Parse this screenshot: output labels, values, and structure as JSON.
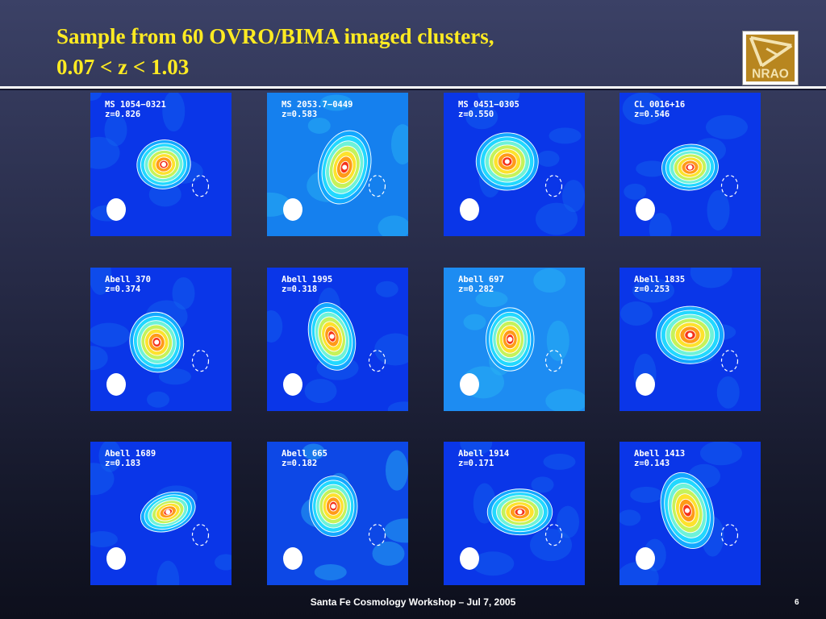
{
  "slide": {
    "title_line1": "Sample from 60 OVRO/BIMA imaged clusters,",
    "title_line2": "0.07 < z < 1.03",
    "logo_text": "NRAO",
    "footer": "Santa Fe Cosmology Workshop  – Jul 7, 2005",
    "page_number": "6",
    "title_color": "#ffeb22"
  },
  "panels": [
    {
      "name": "MS 1054−0321",
      "z": "z=0.826"
    },
    {
      "name": "MS 2053.7−0449",
      "z": "z=0.583"
    },
    {
      "name": "MS 0451−0305",
      "z": "z=0.550"
    },
    {
      "name": "CL 0016+16",
      "z": "z=0.546"
    },
    {
      "name": "Abell 370",
      "z": "z=0.374"
    },
    {
      "name": "Abell 1995",
      "z": "z=0.318"
    },
    {
      "name": "Abell 697",
      "z": "z=0.282"
    },
    {
      "name": "Abell 1835",
      "z": "z=0.253"
    },
    {
      "name": "Abell 1689",
      "z": "z=0.183"
    },
    {
      "name": "Abell 665",
      "z": "z=0.182"
    },
    {
      "name": "Abell 1914",
      "z": "z=0.171"
    },
    {
      "name": "Abell 1413",
      "z": "z=0.143"
    }
  ]
}
